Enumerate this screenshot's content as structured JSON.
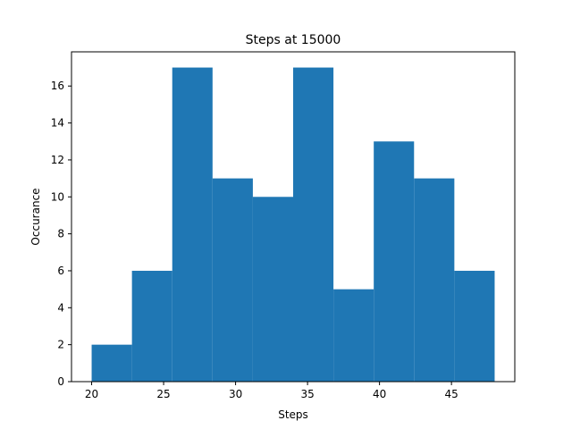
{
  "chart_data": {
    "type": "bar",
    "title": "Steps at 15000",
    "xlabel": "Steps",
    "ylabel": "Occurance",
    "bin_edges": [
      20,
      22.8,
      25.6,
      28.4,
      31.2,
      34,
      36.8,
      39.6,
      42.4,
      45.2,
      48
    ],
    "values": [
      2,
      6,
      17,
      11,
      10,
      17,
      5,
      13,
      11,
      6
    ],
    "xlim": [
      18.6,
      49.4
    ],
    "ylim": [
      0,
      17.85
    ],
    "xticks": [
      20,
      25,
      30,
      35,
      40,
      45
    ],
    "yticks": [
      0,
      2,
      4,
      6,
      8,
      10,
      12,
      14,
      16
    ],
    "grid": false,
    "bar_color": "#1f77b4"
  }
}
